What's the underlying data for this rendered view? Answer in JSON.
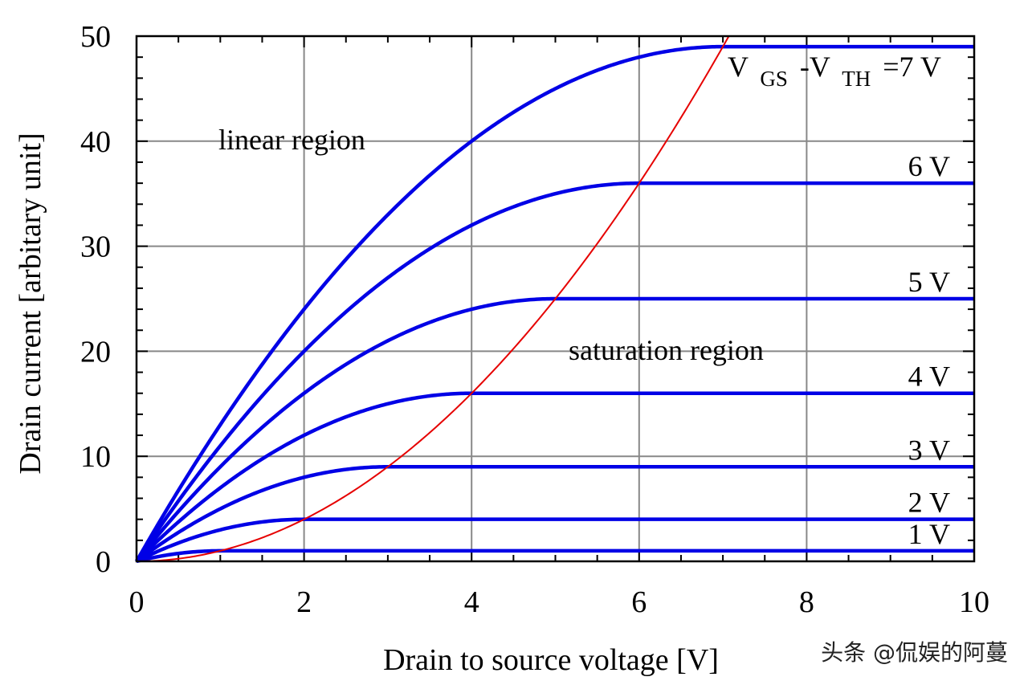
{
  "chart_data": {
    "type": "line",
    "title": "",
    "xlabel": "Drain to source voltage [V]",
    "ylabel": "Drain current [arbitary unit]",
    "xlim": [
      0,
      10
    ],
    "ylim": [
      0,
      50
    ],
    "x_ticks": [
      0,
      2,
      4,
      6,
      8,
      10
    ],
    "y_ticks": [
      0,
      10,
      20,
      30,
      40,
      50
    ],
    "x_tick_labels": [
      "0",
      "2",
      "4",
      "6",
      "8",
      "10"
    ],
    "y_tick_labels": [
      "0",
      "10",
      "20",
      "30",
      "40",
      "50"
    ],
    "grid": true,
    "model": "I = 2*(Vov)*Vds - Vds^2 for Vds < Vov, else Vov^2",
    "series": [
      {
        "name": "1 V",
        "overdrive_v": 1,
        "saturation_current": 1,
        "color": "#0000e6"
      },
      {
        "name": "2 V",
        "overdrive_v": 2,
        "saturation_current": 4,
        "color": "#0000e6"
      },
      {
        "name": "3 V",
        "overdrive_v": 3,
        "saturation_current": 9,
        "color": "#0000e6"
      },
      {
        "name": "4 V",
        "overdrive_v": 4,
        "saturation_current": 16,
        "color": "#0000e6"
      },
      {
        "name": "5 V",
        "overdrive_v": 5,
        "saturation_current": 25,
        "color": "#0000e6"
      },
      {
        "name": "6 V",
        "overdrive_v": 6,
        "saturation_current": 36,
        "color": "#0000e6"
      },
      {
        "name": "7 V",
        "overdrive_v": 7,
        "saturation_current": 49,
        "color": "#0000e6"
      }
    ],
    "boundary_curve": {
      "name": "saturation boundary I = Vds^2",
      "x": [
        0,
        1,
        2,
        3,
        4,
        5,
        6,
        7.07
      ],
      "y": [
        0,
        1,
        4,
        9,
        16,
        25,
        36,
        50
      ],
      "color": "#e60000"
    },
    "top_series_label": {
      "v": "V",
      "gs": "GS",
      "dash_v": "-V",
      "th": "TH",
      "value": "=7 V"
    },
    "annotations": [
      {
        "text": "linear region",
        "x": 2,
        "y": 40
      },
      {
        "text": "saturation region",
        "x": 6.5,
        "y": 20
      }
    ]
  },
  "watermark": "头条 @侃娱的阿蔓"
}
